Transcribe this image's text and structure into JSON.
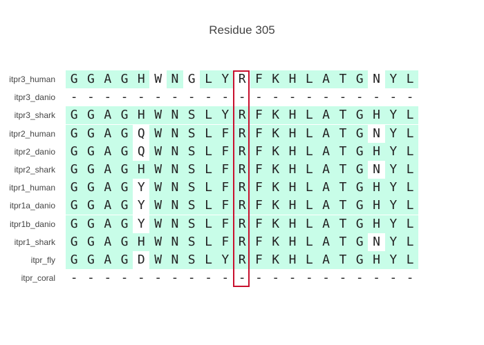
{
  "title": "Residue 305",
  "colors": {
    "match": "#c8fde8",
    "highlight_border": "#c8102e",
    "gap": "#ffffff"
  },
  "highlight_column": 10,
  "rows": [
    {
      "label": "itpr3_human",
      "seq": "GGAGHWNGLYRFKHLATGNYL",
      "match": "111110101101111111011"
    },
    {
      "label": "itpr3_danio",
      "seq": "---------------------",
      "match": "000000000000000000000"
    },
    {
      "label": "itpr3_shark",
      "seq": "GGAGHWNSLYRFKHLATGHYL",
      "match": "111111111111111111111"
    },
    {
      "label": "itpr2_human",
      "seq": "GGAGQWNSLFRFKHLATGNYL",
      "match": "111101111111111111011"
    },
    {
      "label": "itpr2_danio",
      "seq": "GGAGQWNSLFRFKHLATGHYL",
      "match": "111101111111111111111"
    },
    {
      "label": "itpr2_shark",
      "seq": "GGAGHWNSLFRFKHLATGNYL",
      "match": "111111111111111111011"
    },
    {
      "label": "itpr1_human",
      "seq": "GGAGYWNSLFRFKHLATGHYL",
      "match": "111101111111111111111"
    },
    {
      "label": "itpr1a_danio",
      "seq": "GGAGYWNSLFRFKHLATGHYL",
      "match": "111101111111111111111"
    },
    {
      "label": "itpr1b_danio",
      "seq": "GGAGYWNSLFRFKHLATGHYL",
      "match": "111101111111111111111"
    },
    {
      "label": "itpr1_shark",
      "seq": "GGAGHWNSLFRFKHLATGNYL",
      "match": "111111111111111111011"
    },
    {
      "label": "itpr_fly",
      "seq": "GGAGDWNSLYRFKHLATGHYL",
      "match": "111101111111111111111"
    },
    {
      "label": "itpr_coral",
      "seq": "---------------------",
      "match": "000000000000000000000"
    }
  ]
}
